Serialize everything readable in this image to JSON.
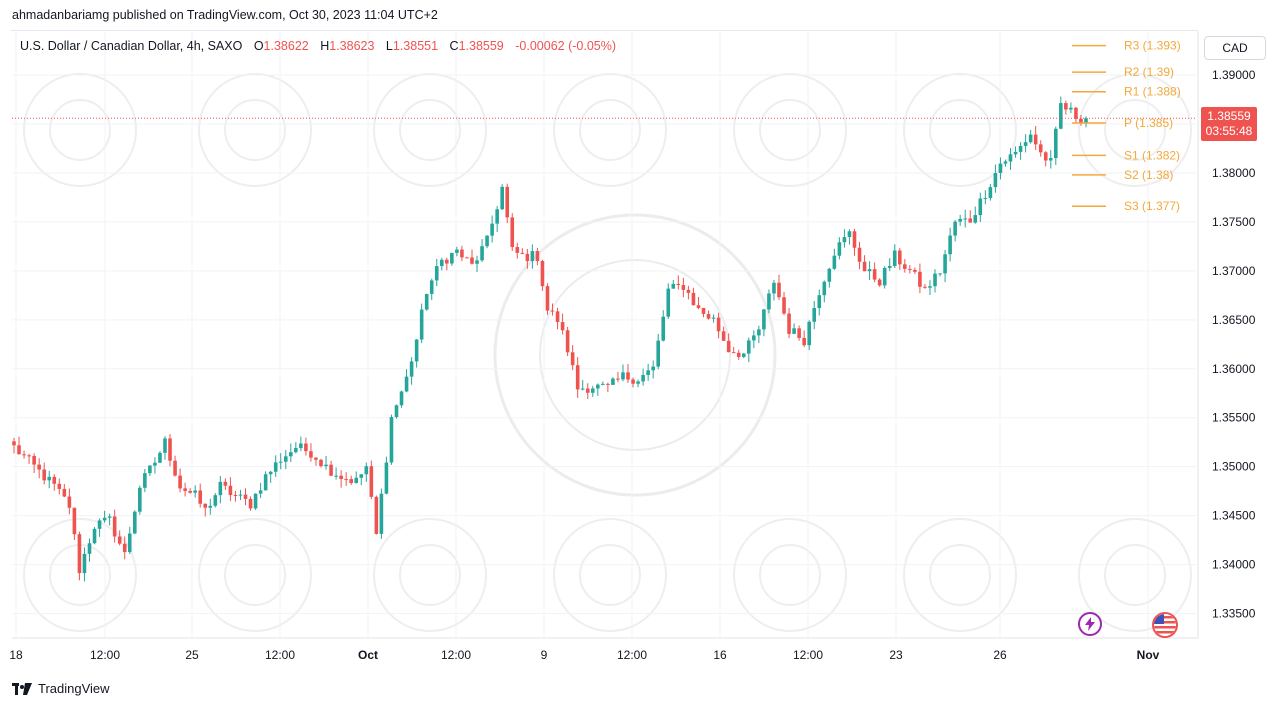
{
  "header": {
    "publisher_line": "ahmadanbariamg published on TradingView.com, Oct 30, 2023 11:04 UTC+2"
  },
  "legend": {
    "symbol": "U.S. Dollar / Canadian Dollar, 4h, SAXO",
    "open_label": "O",
    "open": "1.38622",
    "high_label": "H",
    "high": "1.38623",
    "low_label": "L",
    "low": "1.38551",
    "close_label": "C",
    "close": "1.38559",
    "change": "-0.00062 (-0.05%)"
  },
  "price_scale": {
    "currency": "CAD",
    "current_price": "1.38559",
    "countdown": "03:55:48"
  },
  "footer": {
    "brand": "TradingView"
  },
  "colors": {
    "up": "#26a69a",
    "down": "#ef5350",
    "pivot": "#f2a93b",
    "grid": "#f0f3fa"
  },
  "icons": {
    "alert": "lightning-icon",
    "events": "us-flag-icon",
    "brand": "tradingview-logo-icon"
  },
  "chart_data": {
    "type": "candlestick",
    "title": "U.S. Dollar / Canadian Dollar, 4h, SAXO",
    "ylim": [
      1.3325,
      1.3945
    ],
    "y_ticks": [
      "1.39000",
      "1.38500",
      "1.38000",
      "1.37500",
      "1.37000",
      "1.36500",
      "1.36000",
      "1.35500",
      "1.35000",
      "1.34500",
      "1.34000",
      "1.33500"
    ],
    "x_ticks": [
      "18",
      "12:00",
      "25",
      "12:00",
      "Oct",
      "12:00",
      "9",
      "12:00",
      "16",
      "12:00",
      "23",
      "26",
      "Nov"
    ],
    "pivots": [
      {
        "label": "R3 (1.393)",
        "value": 1.393
      },
      {
        "label": "R2 (1.39)",
        "value": 1.3903
      },
      {
        "label": "R1 (1.388)",
        "value": 1.3883
      },
      {
        "label": "P (1.385)",
        "value": 1.3851
      },
      {
        "label": "S1 (1.382)",
        "value": 1.3818
      },
      {
        "label": "S2 (1.38)",
        "value": 1.3798
      },
      {
        "label": "S3 (1.377)",
        "value": 1.3766
      }
    ],
    "current_price": 1.38559,
    "anchors": [
      [
        0,
        1.352
      ],
      [
        5,
        1.3495
      ],
      [
        8,
        1.348
      ],
      [
        11,
        1.346
      ],
      [
        13,
        1.3395
      ],
      [
        16,
        1.344
      ],
      [
        19,
        1.3445
      ],
      [
        22,
        1.341
      ],
      [
        25,
        1.348
      ],
      [
        28,
        1.3505
      ],
      [
        30,
        1.3525
      ],
      [
        33,
        1.348
      ],
      [
        36,
        1.347
      ],
      [
        38,
        1.3455
      ],
      [
        41,
        1.348
      ],
      [
        44,
        1.347
      ],
      [
        47,
        1.3462
      ],
      [
        50,
        1.349
      ],
      [
        53,
        1.3508
      ],
      [
        56,
        1.352
      ],
      [
        59,
        1.3515
      ],
      [
        62,
        1.35
      ],
      [
        65,
        1.349
      ],
      [
        68,
        1.3485
      ],
      [
        70,
        1.35
      ],
      [
        72,
        1.343
      ],
      [
        75,
        1.355
      ],
      [
        78,
        1.359
      ],
      [
        80,
        1.363
      ],
      [
        82,
        1.368
      ],
      [
        85,
        1.371
      ],
      [
        88,
        1.372
      ],
      [
        91,
        1.3705
      ],
      [
        94,
        1.373
      ],
      [
        97,
        1.3785
      ],
      [
        99,
        1.372
      ],
      [
        101,
        1.3715
      ],
      [
        104,
        1.3715
      ],
      [
        106,
        1.366
      ],
      [
        108,
        1.365
      ],
      [
        110,
        1.362
      ],
      [
        112,
        1.358
      ],
      [
        115,
        1.3582
      ],
      [
        118,
        1.358
      ],
      [
        121,
        1.3592
      ],
      [
        124,
        1.359
      ],
      [
        127,
        1.36
      ],
      [
        130,
        1.368
      ],
      [
        133,
        1.3685
      ],
      [
        136,
        1.366
      ],
      [
        139,
        1.365
      ],
      [
        142,
        1.362
      ],
      [
        145,
        1.3615
      ],
      [
        148,
        1.364
      ],
      [
        151,
        1.369
      ],
      [
        154,
        1.364
      ],
      [
        157,
        1.363
      ],
      [
        160,
        1.368
      ],
      [
        163,
        1.372
      ],
      [
        166,
        1.3738
      ],
      [
        169,
        1.37
      ],
      [
        172,
        1.369
      ],
      [
        175,
        1.3715
      ],
      [
        178,
        1.37
      ],
      [
        181,
        1.368
      ],
      [
        184,
        1.37
      ],
      [
        187,
        1.375
      ],
      [
        190,
        1.3752
      ],
      [
        193,
        1.378
      ],
      [
        196,
        1.381
      ],
      [
        199,
        1.382
      ],
      [
        202,
        1.384
      ],
      [
        204,
        1.382
      ],
      [
        206,
        1.381
      ],
      [
        208,
        1.387
      ],
      [
        211,
        1.3858
      ],
      [
        213,
        1.3856
      ]
    ],
    "candle_count": 214
  }
}
